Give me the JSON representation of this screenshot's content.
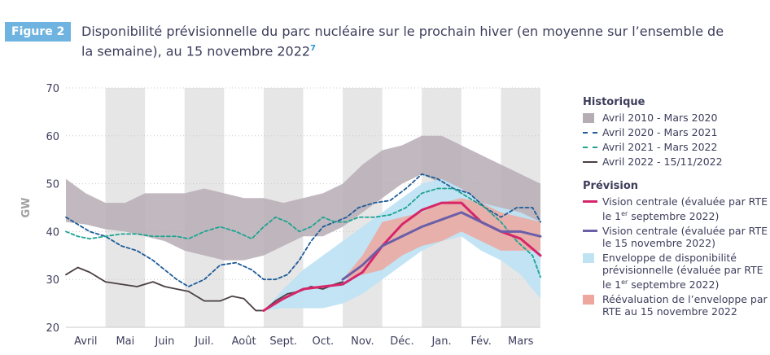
{
  "header": {
    "badge": "Figure 2",
    "title": "Disponibilité prévisionnelle du parc nucléaire sur le prochain hiver (en moyenne sur l’ensemble de la semaine), au 15 novembre 2022",
    "note_marker": "7"
  },
  "colors": {
    "hist_band": "#b6adb4",
    "y2020": "#1f5c99",
    "y2021": "#1ea392",
    "y2022": "#4a3f45",
    "central_sep": "#d6266a",
    "central_nov": "#6a5fa8",
    "envelope_sep": "#bfe3f3",
    "envelope_nov": "#eea79d",
    "stripe": "#e6e6e6"
  },
  "legend": {
    "historique_title": "Historique",
    "prevision_title": "Prévision",
    "items": {
      "band": "Avril 2010 - Mars 2020",
      "y2020": "Avril 2020 - Mars 2021",
      "y2021": "Avril 2021 - Mars 2022",
      "y2022": "Avril 2022 - 15/11/2022",
      "central_sep_a": "Vision centrale (évaluée par RTE le 1",
      "central_sep_sup": "er",
      "central_sep_b": " septembre 2022)",
      "central_nov": "Vision centrale (évaluée par RTE le 15 novembre 2022)",
      "env_sep_a": "Enveloppe de disponibilité prévisionnelle (évaluée par RTE le 1",
      "env_sep_sup": "er",
      "env_sep_b": " septembre 2022)",
      "env_nov": "Réévaluation de l’enveloppe par RTE au 15 novembre 2022"
    }
  },
  "chart_data": {
    "type": "line",
    "ylabel": "GW",
    "ylim": [
      20,
      70
    ],
    "yticks": [
      20,
      30,
      40,
      50,
      60,
      70
    ],
    "xlim": [
      0,
      12
    ],
    "months": [
      "Avril",
      "Mai",
      "Juin",
      "Juil.",
      "Août",
      "Sept.",
      "Oct.",
      "Nov.",
      "Déc.",
      "Jan.",
      "Fév.",
      "Mars"
    ],
    "grid": true,
    "historical_band": {
      "name": "Avril 2010 - Mars 2020",
      "x": [
        0,
        0.5,
        1,
        1.5,
        2,
        2.5,
        3,
        3.5,
        4,
        4.5,
        5,
        5.5,
        6,
        6.5,
        7,
        7.5,
        8,
        8.5,
        9,
        9.5,
        10,
        10.5,
        11,
        11.5,
        12
      ],
      "low": [
        42,
        41.5,
        40.5,
        40,
        39,
        38,
        36,
        35,
        34,
        34,
        35,
        37,
        39,
        39,
        41,
        44,
        47,
        50,
        52,
        50,
        48,
        45,
        43,
        42,
        41
      ],
      "high": [
        51,
        48,
        46,
        46,
        48,
        48,
        48,
        49,
        48,
        47,
        47,
        46,
        47,
        48,
        50,
        54,
        57,
        58,
        60,
        60,
        58,
        56,
        54,
        52,
        50
      ]
    },
    "series": [
      {
        "name": "Avril 2020 - Mars 2021",
        "x": [
          0,
          0.3,
          0.6,
          1,
          1.4,
          1.8,
          2.2,
          2.5,
          2.8,
          3.1,
          3.5,
          3.9,
          4.3,
          4.7,
          5,
          5.3,
          5.6,
          5.9,
          6.2,
          6.5,
          6.8,
          7.1,
          7.4,
          7.8,
          8.2,
          8.6,
          9,
          9.4,
          9.8,
          10.2,
          10.6,
          11,
          11.4,
          11.8,
          12
        ],
        "y": [
          43,
          41.5,
          40,
          39,
          37,
          36,
          34,
          32,
          30,
          28.5,
          30,
          33,
          33.5,
          32,
          30,
          30,
          31,
          34,
          38,
          41,
          42,
          43,
          45,
          46,
          46.5,
          49,
          52,
          51,
          49,
          48,
          45,
          43,
          45,
          45,
          42
        ]
      },
      {
        "name": "Avril 2021 - Mars 2022",
        "x": [
          0,
          0.3,
          0.6,
          1,
          1.4,
          1.8,
          2.2,
          2.5,
          2.8,
          3.1,
          3.5,
          3.9,
          4.3,
          4.7,
          5,
          5.3,
          5.6,
          5.9,
          6.2,
          6.5,
          6.8,
          7.1,
          7.4,
          7.8,
          8.2,
          8.6,
          9,
          9.4,
          9.8,
          10.2,
          10.6,
          11,
          11.4,
          11.8,
          12
        ],
        "y": [
          40,
          39,
          38.5,
          39,
          39.5,
          39.5,
          39,
          39,
          39,
          38.5,
          40,
          41,
          40,
          38.5,
          41,
          43,
          42,
          40,
          41,
          43,
          42,
          42,
          43,
          43,
          43.5,
          45,
          48,
          49,
          49,
          47,
          45,
          42,
          38,
          35,
          30.5
        ]
      },
      {
        "name": "Avril 2022 - 15/11/2022",
        "x": [
          0,
          0.3,
          0.6,
          1,
          1.4,
          1.8,
          2.2,
          2.5,
          2.8,
          3.1,
          3.5,
          3.9,
          4.2,
          4.5,
          4.8,
          5,
          5.3,
          5.6,
          5.9,
          6.2,
          6.5,
          6.8,
          7
        ],
        "y": [
          31,
          32.5,
          31.5,
          29.5,
          29,
          28.5,
          29.5,
          28.5,
          28,
          27.5,
          25.5,
          25.5,
          26.5,
          26,
          23.5,
          23.5,
          25.5,
          27,
          27.5,
          28.5,
          28,
          29,
          29.5
        ]
      },
      {
        "name": "Vision centrale (évaluée par RTE le 1er septembre 2022)",
        "x": [
          5,
          5.5,
          6,
          6.5,
          7,
          7.5,
          8,
          8.5,
          9,
          9.5,
          10,
          10.5,
          11,
          11.5,
          12
        ],
        "y": [
          23.5,
          26,
          28,
          28.5,
          29,
          31.5,
          37,
          41.5,
          44.5,
          46,
          46,
          42,
          40,
          38.5,
          35
        ]
      },
      {
        "name": "Vision centrale (évaluée par RTE le 15 novembre 2022)",
        "x": [
          7,
          7.5,
          8,
          8.5,
          9,
          9.5,
          10,
          10.5,
          11,
          11.5,
          12
        ],
        "y": [
          30,
          33,
          37,
          39,
          41,
          42.5,
          44,
          42,
          40,
          40,
          39
        ]
      }
    ],
    "envelopes": [
      {
        "name": "Enveloppe de disponibilité prévisionnelle (évaluée par RTE le 1er septembre 2022)",
        "x": [
          5,
          5.5,
          6,
          6.5,
          7,
          7.5,
          8,
          8.5,
          9,
          9.5,
          10,
          10.5,
          11,
          11.5,
          12
        ],
        "low": [
          23.5,
          24,
          24,
          24,
          25,
          27,
          30,
          33,
          36,
          38,
          39,
          36,
          34,
          31,
          26
        ],
        "high": [
          23.5,
          28,
          32,
          35,
          38,
          41,
          44,
          47,
          50,
          51,
          49,
          46,
          45,
          44,
          42
        ]
      },
      {
        "name": "Réévaluation de l’enveloppe par RTE au 15 novembre 2022",
        "x": [
          7,
          7.5,
          8,
          8.5,
          9,
          9.5,
          10,
          10.5,
          11,
          11.5,
          12
        ],
        "low": [
          30,
          31,
          32,
          35,
          37,
          38,
          40,
          38,
          36,
          36,
          36
        ],
        "high": [
          30,
          35,
          42,
          43,
          44,
          46,
          47,
          46,
          44,
          43,
          42
        ]
      }
    ]
  }
}
